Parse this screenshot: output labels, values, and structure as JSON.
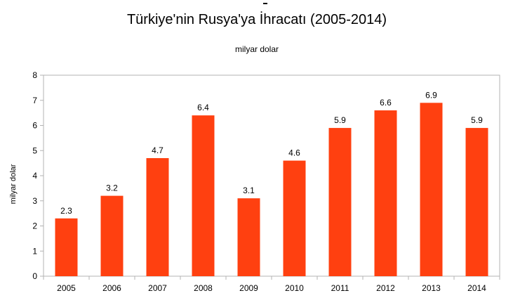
{
  "chart_data": {
    "type": "bar",
    "title": "Türkiye'nin Rusya'ya İhracatı (2005-2014)",
    "subtitle": "milyar dolar",
    "xlabel": "",
    "ylabel": "milyar dolar",
    "categories": [
      "2005",
      "2006",
      "2007",
      "2008",
      "2009",
      "2010",
      "2011",
      "2012",
      "2013",
      "2014"
    ],
    "values": [
      2.3,
      3.2,
      4.7,
      6.4,
      3.1,
      4.6,
      5.9,
      6.6,
      6.9,
      5.9
    ],
    "data_labels": [
      "2.3",
      "3.2",
      "4.7",
      "6.4",
      "3.1",
      "4.6",
      "5.9",
      "6.6",
      "6.9",
      "5.9"
    ],
    "ylim": [
      0,
      8
    ],
    "yticks": [
      "0",
      "1",
      "2",
      "3",
      "4",
      "5",
      "6",
      "7",
      "8"
    ],
    "grid": false,
    "legend": "none",
    "bar_color": "#ff4010"
  }
}
